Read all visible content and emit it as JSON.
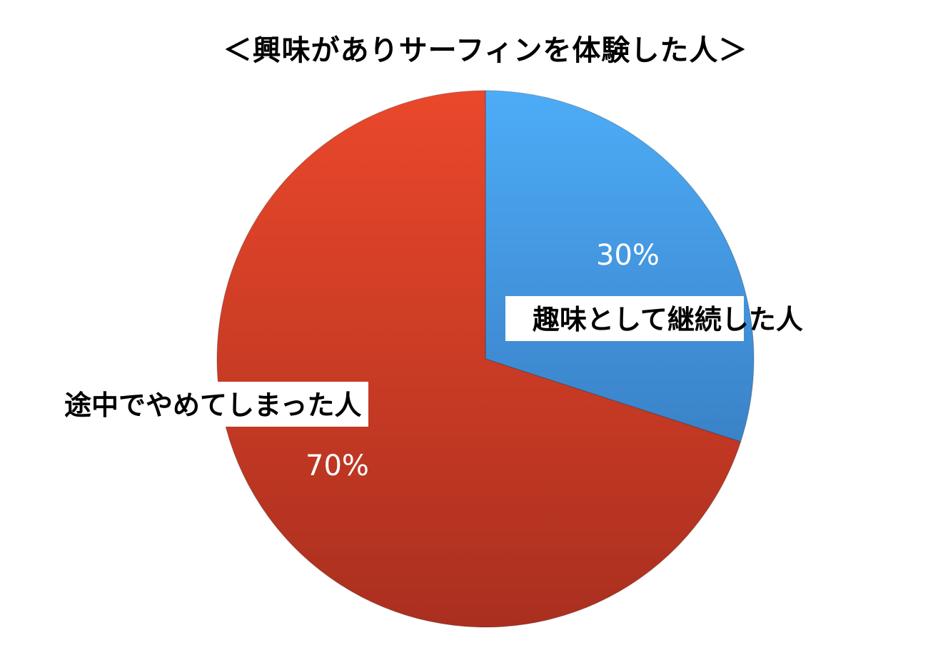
{
  "chart_data": {
    "type": "pie",
    "title": "＜興味がありサーフィンを体験した人＞",
    "slices": [
      {
        "label": "趣味として継続した人",
        "value": 30,
        "value_label": "30%",
        "color": "#4399e4"
      },
      {
        "label": "途中でやめてしまった人",
        "value": 70,
        "value_label": "70%",
        "color": "#d63d24"
      }
    ],
    "start": "12 o'clock, clockwise"
  }
}
